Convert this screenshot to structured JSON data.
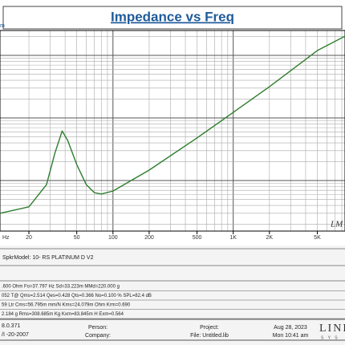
{
  "chart_data": {
    "type": "line",
    "title": "Impedance vs Freq",
    "xlabel": "Hz",
    "ylabel": "m",
    "x": [
      11.5,
      20,
      28,
      33,
      37.8,
      42,
      50,
      60,
      70,
      80,
      100,
      200,
      500,
      1000,
      2000,
      5000,
      8500
    ],
    "series": [
      {
        "name": "Impedance",
        "color": "#2e7d2e",
        "values": [
          3.0,
          3.8,
          8.6,
          28,
          62,
          44,
          18,
          8.6,
          6.4,
          6.1,
          6.8,
          14.7,
          48,
          123,
          316,
          1194,
          2030
        ]
      }
    ],
    "xlim": [
      11.5,
      8500
    ],
    "ylim": [
      1.56,
      2500
    ],
    "xlog": true,
    "ylog": true,
    "grid": true,
    "xticks": [
      20,
      50,
      100,
      200,
      500,
      {
        "value": 1000,
        "label": "1K"
      },
      {
        "value": 2000,
        "label": "2K"
      },
      {
        "value": 5000,
        "label": "5K"
      }
    ],
    "annotation": "LM"
  },
  "info": {
    "model": "SpkrModel:  10- RS PLATINUM D    V2",
    "params": [
      ".600 Ohm   Fo=37.797 Hz   Sd=33.223m   MMd=220.000 g",
      "052 T@   Qms=2.514   Qes=0.428   Qts=0.366   No=0.100 %   SPL=82.4 dB",
      "59 Ltr   Cms=56.795m mm/N   Kms=24.079m Ohm   Krm=0.690",
      "2.184 g   Rms=308.685m Kg   Kxm=83.845m H   Exm=0.564"
    ],
    "footer": {
      "version": "8.0.371",
      "date_old": "/I -20-2007",
      "person": "Person:",
      "company": "Company:",
      "project": "Project:",
      "file": "File: Untitled.lib",
      "date": "Aug 28, 2023",
      "time": "Mon 10:41 am",
      "logo": "LINE",
      "logo_sub": "S Y S"
    }
  }
}
